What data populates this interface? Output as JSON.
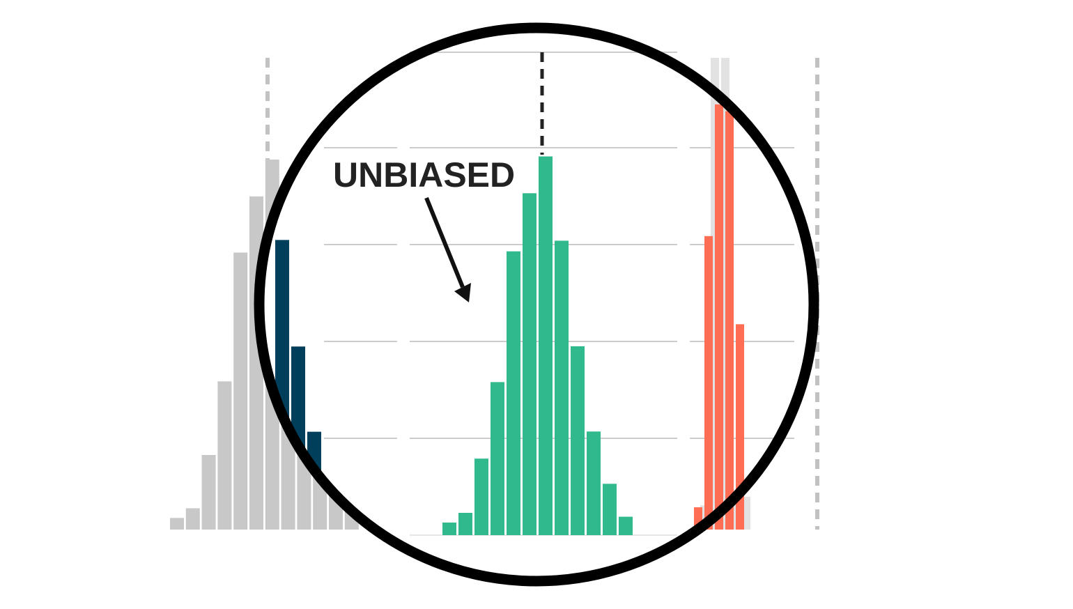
{
  "chart_data": {
    "type": "bar",
    "grid": true,
    "annotation": "UNBIASED",
    "colors": {
      "biased_low": "#c8c8c8",
      "biased_low_highlight": "#003f5c",
      "unbiased": "#2fb98c",
      "biased_high": "#ff6e54",
      "biased_high_background": "#e2e2e2",
      "gridline": "#cccccc",
      "circle": "#000000",
      "reference_line_dark": "#222222",
      "reference_line_light": "#c2c2c2"
    },
    "panels": [
      {
        "id": "left",
        "series": [
          {
            "role": "background",
            "values": [
              0.12,
              0.22,
              0.77,
              1.53,
              2.86,
              3.44,
              3.82,
              3.1,
              2.4,
              1.5,
              0.8,
              0.18
            ]
          },
          {
            "role": "highlight",
            "values": [
              2.99,
              1.89,
              1.01
            ]
          }
        ],
        "reference_line": "dashed-light"
      },
      {
        "id": "middle",
        "series": [
          {
            "role": "main",
            "values": [
              0.13,
              0.23,
              0.79,
              1.58,
              2.93,
              3.53,
              3.91,
              3.04,
              1.95,
              1.07,
              0.53,
              0.19
            ]
          }
        ],
        "reference_line": "dashed-dark"
      },
      {
        "id": "right",
        "series": [
          {
            "role": "background",
            "values": [
              0.25,
              4.87,
              4.87,
              0.35,
              0.34
            ]
          },
          {
            "role": "main",
            "values": [
              0.23,
              3.03,
              4.39,
              4.32,
              2.12
            ]
          }
        ],
        "reference_line": "dashed-light"
      }
    ]
  }
}
